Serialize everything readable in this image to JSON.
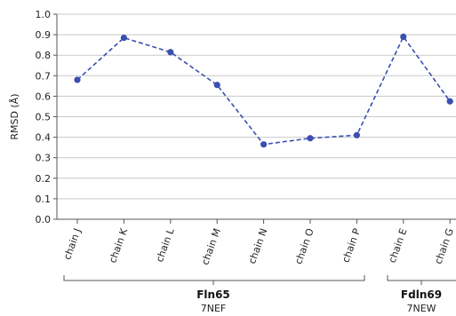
{
  "chart_data": {
    "type": "line",
    "categories": [
      "chain J",
      "chain K",
      "chain L",
      "chain M",
      "chain N",
      "chain O",
      "chain P",
      "chain E",
      "chain G"
    ],
    "series": [
      {
        "values": [
          0.68,
          0.885,
          0.815,
          0.655,
          0.365,
          0.395,
          0.41,
          0.89,
          0.575
        ]
      }
    ],
    "ylabel": "RMSD (Å)",
    "ylim": [
      0,
      1.0
    ],
    "yticks": [
      "0.0",
      "0.1",
      "0.2",
      "0.3",
      "0.4",
      "0.5",
      "0.6",
      "0.7",
      "0.8",
      "0.9",
      "1.0"
    ],
    "grid": true,
    "line_style": "dashed",
    "colors": {
      "series": "#3a4fb0",
      "grid": "#c9c9c9",
      "axis": "#555555"
    },
    "groups": [
      {
        "name": "Fln65",
        "subtitle": "7NEF"
      },
      {
        "name": "Fdln69",
        "subtitle": "7NEW"
      }
    ]
  }
}
